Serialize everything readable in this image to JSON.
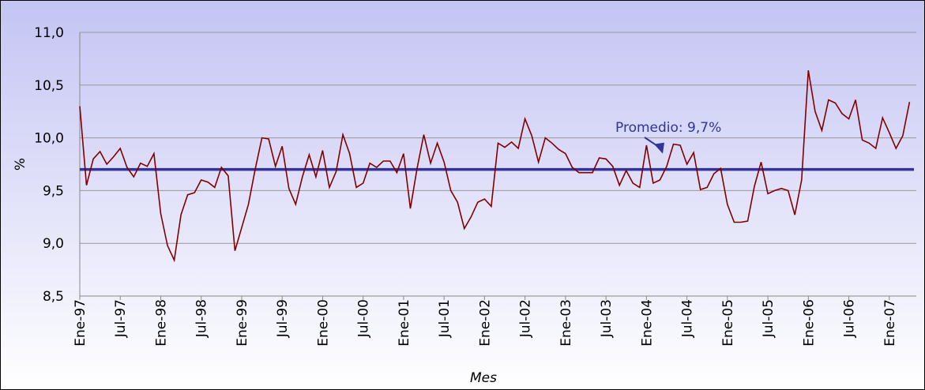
{
  "chart_data": {
    "type": "line",
    "xlabel": "Mes",
    "ylabel": "%",
    "categories": [
      "Ene-97",
      null,
      null,
      null,
      null,
      null,
      "Jul-97",
      null,
      null,
      null,
      null,
      null,
      "Ene-98",
      null,
      null,
      null,
      null,
      null,
      "Jul-98",
      null,
      null,
      null,
      null,
      null,
      "Ene-99",
      null,
      null,
      null,
      null,
      null,
      "Jul-99",
      null,
      null,
      null,
      null,
      null,
      "Ene-00",
      null,
      null,
      null,
      null,
      null,
      "Jul-00",
      null,
      null,
      null,
      null,
      null,
      "Ene-01",
      null,
      null,
      null,
      null,
      null,
      "Jul-01",
      null,
      null,
      null,
      null,
      null,
      "Ene-02",
      null,
      null,
      null,
      null,
      null,
      "Jul-02",
      null,
      null,
      null,
      null,
      null,
      "Ene-03",
      null,
      null,
      null,
      null,
      null,
      "Jul-03",
      null,
      null,
      null,
      null,
      null,
      "Ene-04",
      null,
      null,
      null,
      null,
      null,
      "Jul-04",
      null,
      null,
      null,
      null,
      null,
      "Ene-05",
      null,
      null,
      null,
      null,
      null,
      "Jul-05",
      null,
      null,
      null,
      null,
      null,
      "Ene-06",
      null,
      null,
      null,
      null,
      null,
      "Jul-06",
      null,
      null,
      null,
      null,
      null,
      "Ene-07",
      null,
      null,
      null
    ],
    "series": [
      {
        "color": "#800000",
        "values": [
          10.3,
          9.55,
          9.8,
          9.87,
          9.75,
          9.82,
          9.9,
          9.72,
          9.63,
          9.76,
          9.73,
          9.85,
          9.28,
          8.98,
          8.84,
          9.27,
          9.46,
          9.48,
          9.6,
          9.58,
          9.53,
          9.72,
          9.64,
          8.93,
          9.15,
          9.37,
          9.7,
          10.0,
          9.99,
          9.73,
          9.92,
          9.52,
          9.37,
          9.63,
          9.84,
          9.63,
          9.88,
          9.53,
          9.68,
          10.03,
          9.85,
          9.53,
          9.57,
          9.76,
          9.72,
          9.78,
          9.78,
          9.67,
          9.85,
          9.33,
          9.71,
          10.03,
          9.76,
          9.95,
          9.77,
          9.5,
          9.39,
          9.14,
          9.25,
          9.39,
          9.42,
          9.35,
          9.95,
          9.91,
          9.96,
          9.9,
          10.18,
          10.02,
          9.77,
          10.0,
          9.95,
          9.89,
          9.85,
          9.72,
          9.67,
          9.67,
          9.67,
          9.81,
          9.8,
          9.73,
          9.55,
          9.69,
          9.57,
          9.53,
          9.93,
          9.57,
          9.6,
          9.73,
          9.94,
          9.93,
          9.75,
          9.86,
          9.51,
          9.53,
          9.66,
          9.71,
          9.37,
          9.2,
          9.2,
          9.21,
          9.54,
          9.77,
          9.47,
          9.5,
          9.52,
          9.5,
          9.27,
          9.6,
          10.64,
          10.25,
          10.07,
          10.36,
          10.33,
          10.23,
          10.18,
          10.36,
          9.98,
          9.95,
          9.9,
          10.19,
          10.05,
          9.9,
          10.02,
          10.34
        ]
      }
    ],
    "average": {
      "value": 9.7,
      "label": "Promedio: 9,7%",
      "color": "#333399"
    },
    "ylim": [
      8.5,
      11.0
    ],
    "yticks": [
      {
        "value": 8.5,
        "label": "8,5"
      },
      {
        "value": 9.0,
        "label": "9,0"
      },
      {
        "value": 9.5,
        "label": "9,5"
      },
      {
        "value": 10.0,
        "label": "10,0"
      },
      {
        "value": 10.5,
        "label": "10,5"
      },
      {
        "value": 11.0,
        "label": "11,0"
      }
    ],
    "grid": true
  }
}
